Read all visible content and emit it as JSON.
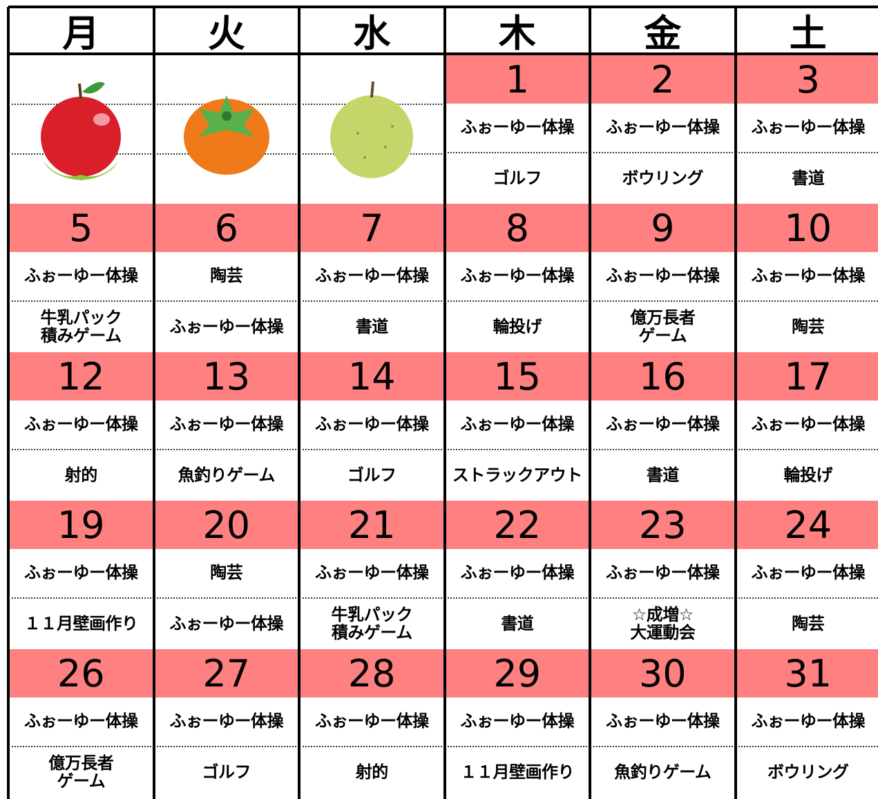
{
  "calendar": {
    "weekdays": [
      "月",
      "火",
      "水",
      "木",
      "金",
      "土"
    ],
    "weeks": [
      [
        null,
        null,
        null,
        {
          "day": "1",
          "am": "ふぉーゆー体操",
          "pm": [
            "ゴルフ"
          ]
        },
        {
          "day": "2",
          "am": "ふぉーゆー体操",
          "pm": [
            "ボウリング"
          ]
        },
        {
          "day": "3",
          "am": "ふぉーゆー体操",
          "pm": [
            "書道"
          ]
        }
      ],
      [
        {
          "day": "5",
          "am": "ふぉーゆー体操",
          "pm": [
            "牛乳パック",
            "積みゲーム"
          ]
        },
        {
          "day": "6",
          "am": "陶芸",
          "pm": [
            "ふぉーゆー体操"
          ]
        },
        {
          "day": "7",
          "am": "ふぉーゆー体操",
          "pm": [
            "書道"
          ]
        },
        {
          "day": "8",
          "am": "ふぉーゆー体操",
          "pm": [
            "輪投げ"
          ]
        },
        {
          "day": "9",
          "am": "ふぉーゆー体操",
          "pm": [
            "億万長者",
            "ゲーム"
          ]
        },
        {
          "day": "10",
          "am": "ふぉーゆー体操",
          "pm": [
            "陶芸"
          ]
        }
      ],
      [
        {
          "day": "12",
          "am": "ふぉーゆー体操",
          "pm": [
            "射的"
          ]
        },
        {
          "day": "13",
          "am": "ふぉーゆー体操",
          "pm": [
            "魚釣りゲーム"
          ]
        },
        {
          "day": "14",
          "am": "ふぉーゆー体操",
          "pm": [
            "ゴルフ"
          ]
        },
        {
          "day": "15",
          "am": "ふぉーゆー体操",
          "pm": [
            "ストラックアウト"
          ]
        },
        {
          "day": "16",
          "am": "ふぉーゆー体操",
          "pm": [
            "書道"
          ]
        },
        {
          "day": "17",
          "am": "ふぉーゆー体操",
          "pm": [
            "輪投げ"
          ]
        }
      ],
      [
        {
          "day": "19",
          "am": "ふぉーゆー体操",
          "pm": [
            "１１月壁画作り"
          ]
        },
        {
          "day": "20",
          "am": "陶芸",
          "pm": [
            "ふぉーゆー体操"
          ]
        },
        {
          "day": "21",
          "am": "ふぉーゆー体操",
          "pm": [
            "牛乳パック",
            "積みゲーム"
          ]
        },
        {
          "day": "22",
          "am": "ふぉーゆー体操",
          "pm": [
            "書道"
          ]
        },
        {
          "day": "23",
          "am": "ふぉーゆー体操",
          "pm": [
            "☆成増☆",
            "大運動会"
          ]
        },
        {
          "day": "24",
          "am": "ふぉーゆー体操",
          "pm": [
            "陶芸"
          ]
        }
      ],
      [
        {
          "day": "26",
          "am": "ふぉーゆー体操",
          "pm": [
            "億万長者",
            "ゲーム"
          ]
        },
        {
          "day": "27",
          "am": "ふぉーゆー体操",
          "pm": [
            "ゴルフ"
          ]
        },
        {
          "day": "28",
          "am": "ふぉーゆー体操",
          "pm": [
            "射的"
          ]
        },
        {
          "day": "29",
          "am": "ふぉーゆー体操",
          "pm": [
            "１１月壁画作り"
          ]
        },
        {
          "day": "30",
          "am": "ふぉーゆー体操",
          "pm": [
            "魚釣りゲーム"
          ]
        },
        {
          "day": "31",
          "am": "ふぉーゆー体操",
          "pm": [
            "ボウリング"
          ]
        }
      ]
    ]
  }
}
